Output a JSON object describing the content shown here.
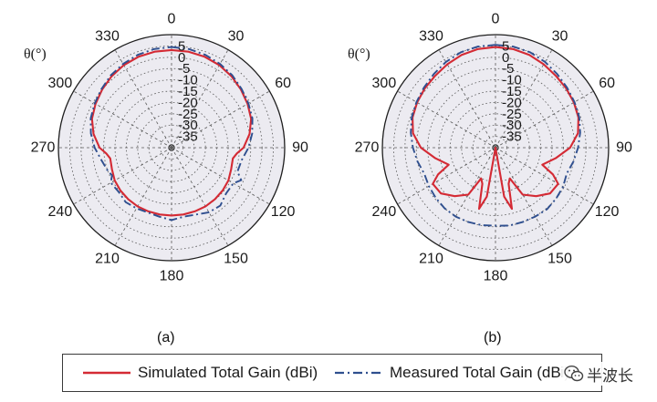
{
  "chart_data": [
    {
      "type": "polar",
      "panel_label": "(a)",
      "axis_label": "θ(°)",
      "angle_ticks": [
        "0",
        "30",
        "60",
        "90",
        "120",
        "150",
        "180",
        "210",
        "240",
        "270",
        "300",
        "330"
      ],
      "radial_ticks": [
        5,
        0,
        -5,
        -10,
        -15,
        -20,
        -25,
        -30,
        -35
      ],
      "rlim": [
        -40,
        10
      ],
      "grid": true,
      "series": [
        {
          "name": "Simulated Total Gain (dBi)",
          "color": "#d42a34",
          "style": "solid",
          "theta": [
            0,
            10,
            20,
            30,
            40,
            50,
            60,
            70,
            80,
            90,
            95,
            100,
            110,
            120,
            130,
            140,
            150,
            160,
            170,
            180,
            190,
            200,
            210,
            220,
            230,
            240,
            250,
            260,
            265,
            270,
            280,
            290,
            300,
            310,
            320,
            330,
            340,
            350
          ],
          "gain": [
            3.2,
            3.1,
            2.8,
            2.2,
            1.2,
            0,
            -1.2,
            -2.6,
            -5,
            -8.2,
            -11,
            -12.5,
            -12,
            -11,
            -10.5,
            -10.2,
            -10,
            -10,
            -10,
            -10,
            -10,
            -10,
            -10,
            -10.2,
            -10.5,
            -11,
            -12,
            -12.5,
            -11,
            -8.2,
            -5,
            -2.6,
            -1.2,
            0,
            1.2,
            2.2,
            2.8,
            3.1
          ]
        },
        {
          "name": "Measured Total Gain (dBi)",
          "color": "#2f4f8f",
          "style": "dashdot",
          "theta": [
            0,
            10,
            20,
            30,
            40,
            50,
            60,
            70,
            80,
            90,
            100,
            110,
            115,
            120,
            130,
            140,
            150,
            160,
            170,
            180,
            190,
            200,
            210,
            220,
            230,
            240,
            245,
            250,
            260,
            270,
            280,
            290,
            300,
            310,
            320,
            330,
            340,
            350
          ],
          "gain": [
            4.5,
            4.3,
            3.7,
            2.8,
            1.8,
            0.4,
            -0.8,
            -2,
            -3.8,
            -6,
            -8.5,
            -9,
            -6,
            -8.5,
            -8.5,
            -6.5,
            -7,
            -8.5,
            -9,
            -8,
            -9,
            -9.5,
            -9,
            -8.5,
            -9.5,
            -9,
            -11,
            -10,
            -8.5,
            -6,
            -3.8,
            -2,
            -0.8,
            0.4,
            1.8,
            2.8,
            3.7,
            4.3
          ]
        }
      ]
    },
    {
      "type": "polar",
      "panel_label": "(b)",
      "axis_label": "θ(°)",
      "angle_ticks": [
        "0",
        "30",
        "60",
        "90",
        "120",
        "150",
        "180",
        "210",
        "240",
        "270",
        "300",
        "330"
      ],
      "radial_ticks": [
        5,
        0,
        -5,
        -10,
        -15,
        -20,
        -25,
        -30,
        -35
      ],
      "rlim": [
        -40,
        10
      ],
      "grid": true,
      "series": [
        {
          "name": "Simulated Total Gain (dBi)",
          "color": "#d42a34",
          "style": "solid",
          "theta": [
            0,
            10,
            20,
            30,
            40,
            50,
            60,
            70,
            80,
            90,
            100,
            110,
            115,
            120,
            130,
            140,
            150,
            155,
            160,
            165,
            170,
            180,
            190,
            195,
            200,
            205,
            210,
            220,
            230,
            240,
            245,
            250,
            260,
            270,
            280,
            290,
            300,
            310,
            320,
            330,
            340,
            350
          ],
          "gain": [
            4.5,
            4.3,
            3.7,
            2.6,
            1.5,
            0.8,
            0,
            -1,
            -3,
            -7,
            -13,
            -18,
            -12,
            -8,
            -8.5,
            -12,
            -16,
            -25,
            -23,
            -12,
            -18,
            -40,
            -18,
            -12,
            -23,
            -25,
            -16,
            -12,
            -8.5,
            -8,
            -12,
            -18,
            -13,
            -7,
            -3,
            -1,
            0,
            0.8,
            1.5,
            2.6,
            3.7,
            4.3
          ]
        },
        {
          "name": "Measured Total Gain (dBi)",
          "color": "#2f4f8f",
          "style": "dashdot",
          "theta": [
            0,
            10,
            20,
            30,
            40,
            50,
            60,
            70,
            80,
            90,
            100,
            110,
            120,
            130,
            140,
            150,
            160,
            170,
            180,
            190,
            200,
            210,
            220,
            230,
            240,
            250,
            260,
            270,
            280,
            290,
            300,
            310,
            320,
            330,
            340,
            350
          ],
          "gain": [
            5.5,
            5.4,
            4.9,
            3.8,
            2.5,
            1.3,
            0.3,
            -0.6,
            -2,
            -3.5,
            -5,
            -6.5,
            -5.5,
            -5,
            -4.5,
            -4.8,
            -5,
            -5,
            -5.5,
            -5.2,
            -5,
            -4.8,
            -5,
            -5.5,
            -6,
            -6.5,
            -5,
            -3.5,
            -2,
            -0.6,
            0.3,
            1.3,
            2.5,
            3.8,
            4.9,
            5.4
          ]
        }
      ]
    }
  ],
  "legend": {
    "simulated_label": "Simulated Total Gain (dBi)",
    "measured_label": "Measured Total Gain (dBi)"
  },
  "watermark": {
    "text": "半波长",
    "icon": "wechat-icon"
  }
}
